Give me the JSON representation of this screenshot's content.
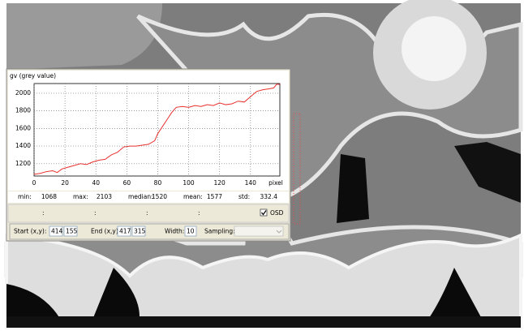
{
  "chart_data": {
    "type": "line",
    "ylabel": "gv (grey value)",
    "xlabel": "pixel",
    "x": [
      0,
      4,
      8,
      12,
      15,
      18,
      22,
      26,
      30,
      34,
      38,
      42,
      46,
      50,
      54,
      58,
      62,
      66,
      70,
      74,
      78,
      80,
      83,
      86,
      89,
      92,
      96,
      100,
      104,
      108,
      112,
      116,
      120,
      124,
      128,
      132,
      136,
      140,
      144,
      148,
      152,
      155,
      157,
      159
    ],
    "series": [
      {
        "color": "#e8312f",
        "values": [
          1080,
          1090,
          1110,
          1120,
          1100,
          1140,
          1160,
          1180,
          1200,
          1190,
          1220,
          1240,
          1250,
          1300,
          1330,
          1390,
          1400,
          1400,
          1410,
          1420,
          1460,
          1540,
          1620,
          1700,
          1780,
          1840,
          1850,
          1840,
          1860,
          1850,
          1870,
          1860,
          1890,
          1870,
          1880,
          1910,
          1900,
          1960,
          2020,
          2040,
          2050,
          2060,
          2103,
          2100
        ]
      }
    ],
    "xlim": [
      0,
      159
    ],
    "ylim": [
      1060,
      2110
    ],
    "xticks": [
      0,
      20,
      40,
      60,
      80,
      100,
      120,
      140
    ],
    "yticks": [
      1200,
      1400,
      1600,
      1800,
      2000
    ],
    "grid": true
  },
  "stats": [
    {
      "label": "min:",
      "value": 1068
    },
    {
      "label": "max:",
      "value": 2103
    },
    {
      "label": "median:",
      "value": 1520
    },
    {
      "label": "mean:",
      "value": 1577
    },
    {
      "label": "std:",
      "value": 332.4
    }
  ],
  "osd_row": {
    "separators": [
      ":",
      ":",
      ":",
      ":"
    ],
    "checkbox": "OSD"
  },
  "controls": {
    "start_label": "Start (x,y):",
    "start_x": 414,
    "start_y": 155,
    "end_label": "End (x,y):",
    "end_x": 417,
    "end_y": 315,
    "width_label": "Width:",
    "width": 10,
    "sampling_label": "Sampling:"
  }
}
